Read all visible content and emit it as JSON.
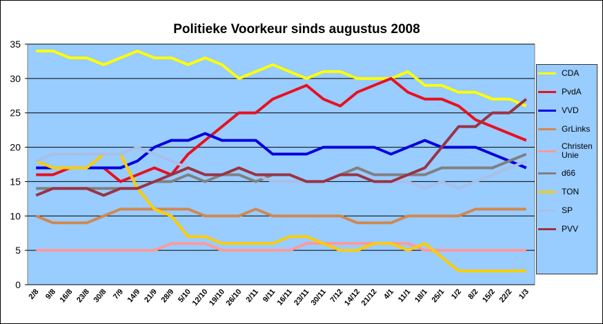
{
  "chart_data": {
    "type": "line",
    "title": "Politieke Voorkeur sinds  augustus 2008",
    "categories": [
      "2/8",
      "9/8",
      "16/8",
      "23/8",
      "30/8",
      "7/9",
      "14/9",
      "21/9",
      "28/9",
      "5/10",
      "12/10",
      "19/10",
      "26/10",
      "2/11",
      "9/11",
      "16/11",
      "23/11",
      "30/11",
      "7/12",
      "14/12",
      "21/12",
      "4/1",
      "11/1",
      "18/1",
      "25/1",
      "1/2",
      "8/2",
      "15/2",
      "22/2",
      "1/3"
    ],
    "ylim": [
      0,
      35
    ],
    "yticks": [
      0,
      5,
      10,
      15,
      20,
      25,
      30,
      35
    ],
    "grid": true,
    "series": [
      {
        "name": "CDA",
        "color": "#ffff00",
        "values": [
          34,
          34,
          33,
          33,
          32,
          33,
          34,
          33,
          33,
          32,
          33,
          32,
          30,
          31,
          32,
          31,
          30,
          31,
          31,
          30,
          30,
          30,
          31,
          29,
          29,
          28,
          28,
          27,
          27,
          26
        ]
      },
      {
        "name": "PvdA",
        "color": "#e8101e",
        "values": [
          16,
          16,
          17,
          17,
          17,
          15,
          16,
          17,
          16,
          19,
          21,
          23,
          25,
          25,
          27,
          28,
          29,
          27,
          26,
          28,
          29,
          30,
          28,
          27,
          27,
          26,
          24,
          23,
          22,
          21
        ]
      },
      {
        "name": "VVD",
        "color": "#0000e0",
        "values": [
          17,
          17,
          17,
          17,
          17,
          17,
          18,
          20,
          21,
          21,
          22,
          21,
          21,
          21,
          19,
          19,
          19,
          20,
          20,
          20,
          20,
          19,
          20,
          21,
          20,
          20,
          20,
          19,
          18,
          17
        ]
      },
      {
        "name": "GrLinks",
        "color": "#d08850",
        "values": [
          10,
          9,
          9,
          9,
          10,
          11,
          11,
          11,
          11,
          11,
          10,
          10,
          10,
          11,
          10,
          10,
          10,
          10,
          10,
          9,
          9,
          9,
          10,
          10,
          10,
          10,
          11,
          11,
          11,
          11
        ]
      },
      {
        "name": "Christen Unie",
        "color": "#ff9999",
        "values": [
          5,
          5,
          5,
          5,
          5,
          5,
          5,
          5,
          6,
          6,
          6,
          5,
          5,
          5,
          5,
          5,
          6,
          6,
          6,
          6,
          6,
          6,
          6,
          5,
          5,
          5,
          5,
          5,
          5,
          5
        ]
      },
      {
        "name": "d66",
        "color": "#808080",
        "values": [
          14,
          14,
          14,
          14,
          14,
          14,
          14,
          15,
          15,
          16,
          15,
          16,
          16,
          15,
          16,
          16,
          15,
          15,
          16,
          17,
          16,
          16,
          16,
          16,
          17,
          17,
          17,
          17,
          18,
          19
        ]
      },
      {
        "name": "TON",
        "color": "#ffcc00",
        "values": [
          18,
          17,
          17,
          17,
          19,
          19,
          14,
          11,
          10,
          7,
          7,
          6,
          6,
          6,
          6,
          7,
          7,
          6,
          5,
          5,
          6,
          6,
          5,
          6,
          4,
          2,
          2,
          2,
          2,
          2
        ]
      },
      {
        "name": "SP",
        "color": "#a9bfe6",
        "values": [
          18,
          19,
          19,
          19,
          19,
          19,
          20,
          19,
          18,
          17,
          16,
          16,
          17,
          16,
          15,
          15,
          15,
          15,
          16,
          16,
          15,
          15,
          15,
          14,
          15,
          14,
          15,
          16,
          17,
          18
        ]
      },
      {
        "name": "PVV",
        "color": "#993344",
        "values": [
          13,
          14,
          14,
          14,
          13,
          14,
          14,
          15,
          16,
          17,
          16,
          16,
          17,
          16,
          16,
          16,
          15,
          15,
          16,
          16,
          15,
          15,
          16,
          17,
          20,
          23,
          23,
          25,
          25,
          27
        ]
      }
    ]
  }
}
